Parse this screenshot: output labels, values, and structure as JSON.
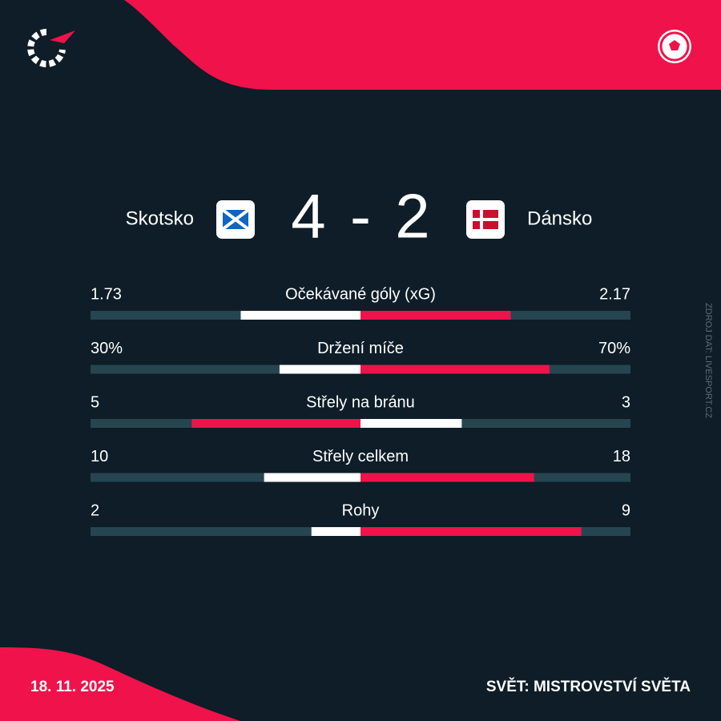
{
  "match": {
    "home_team": "Skotsko",
    "home_score": 4,
    "separator": "-",
    "away_score": 2,
    "away_team": "Dánsko"
  },
  "stats": {
    "rows": [
      {
        "label": "Očekávané góly (xG)",
        "home": 1.73,
        "away": 2.17
      },
      {
        "label": "Držení míče",
        "home": {
          "value": 30,
          "label": "30%"
        },
        "away": {
          "value": 70,
          "label": "70%"
        }
      },
      {
        "label": "Střely na bránu",
        "home": 5,
        "away": 3
      },
      {
        "label": "Střely celkem",
        "home": 10,
        "away": 18
      },
      {
        "label": "Rohy",
        "home": 2,
        "away": 9
      }
    ]
  },
  "source": "ZDROJ DAT: LIVESPORT.CZ",
  "footer": {
    "date": "18. 11. 2025",
    "competition": "SVĚT: MISTROVSTVÍ SVĚTA"
  }
}
